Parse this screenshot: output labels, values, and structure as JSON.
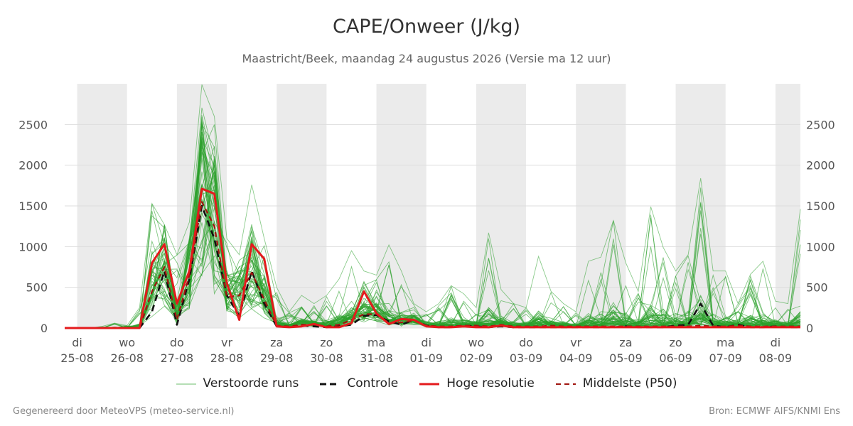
{
  "header": {
    "title": "CAPE/Onweer (J/kg)",
    "subtitle": "Maastricht/Beek, maandag 24 augustus 2026 (Versie ma 12 uur)"
  },
  "footer": {
    "left": "Gegenereerd door MeteoVPS (meteo-service.nl)",
    "right": "Bron: ECMWF AIFS/KNMI Ens"
  },
  "legend": [
    {
      "label": "Verstoorde runs",
      "style": "thin-green",
      "color": "#2ca02c"
    },
    {
      "label": "Controle",
      "style": "dashed",
      "color": "#111111"
    },
    {
      "label": "Hoge resolutie",
      "style": "solid",
      "color": "#e41a1c"
    },
    {
      "label": "Middelste (P50)",
      "style": "dashed",
      "color": "#a0150f"
    }
  ],
  "colors": {
    "members": "#2ca02c",
    "control": "#111111",
    "hires": "#e41a1c",
    "median": "#a0150f",
    "night_band": "#ebebeb",
    "grid": "#dddddd"
  },
  "chart_data": {
    "type": "line",
    "title": "CAPE/Onweer (J/kg)",
    "xlabel": "",
    "ylabel": "",
    "ylim": [
      0,
      3000
    ],
    "yticks": [
      0,
      500,
      1000,
      1500,
      2000,
      2500
    ],
    "x_range_days": [
      -0.25,
      14.5
    ],
    "day_ticks": [
      {
        "day": "di",
        "date": "25-08"
      },
      {
        "day": "wo",
        "date": "26-08"
      },
      {
        "day": "do",
        "date": "27-08"
      },
      {
        "day": "vr",
        "date": "28-08"
      },
      {
        "day": "za",
        "date": "29-08"
      },
      {
        "day": "zo",
        "date": "30-08"
      },
      {
        "day": "ma",
        "date": "31-08"
      },
      {
        "day": "di",
        "date": "01-09"
      },
      {
        "day": "wo",
        "date": "02-09"
      },
      {
        "day": "do",
        "date": "03-09"
      },
      {
        "day": "vr",
        "date": "04-09"
      },
      {
        "day": "za",
        "date": "05-09"
      },
      {
        "day": "zo",
        "date": "06-09"
      },
      {
        "day": "ma",
        "date": "07-09"
      },
      {
        "day": "di",
        "date": "08-09"
      }
    ],
    "step_hours": 6,
    "grid": true,
    "legend_position": "bottom",
    "series": [
      {
        "name": "Hoge resolutie",
        "style": "solid",
        "x": [
          -0.25,
          0,
          0.25,
          0.5,
          0.75,
          1,
          1.25,
          1.5,
          1.75,
          2,
          2.25,
          2.5,
          2.75,
          3,
          3.25,
          3.5,
          3.75,
          4,
          4.25,
          4.5,
          4.75,
          5,
          5.25,
          5.5,
          5.75,
          6,
          6.25,
          6.5,
          6.75,
          7,
          7.25,
          7.5,
          7.75,
          8,
          8.25,
          8.5,
          8.75,
          9,
          9.25,
          9.5,
          9.75,
          10,
          10.25,
          10.5,
          10.75,
          11,
          11.25,
          11.5,
          11.75,
          12,
          12.25,
          12.5,
          12.75,
          13,
          13.25,
          13.5,
          13.75,
          14,
          14.25,
          14.5
        ],
        "values": [
          0,
          0,
          0,
          0,
          0,
          0,
          0,
          800,
          1030,
          300,
          700,
          1710,
          1650,
          550,
          100,
          1030,
          850,
          20,
          10,
          20,
          50,
          10,
          10,
          60,
          450,
          180,
          50,
          110,
          100,
          20,
          10,
          10,
          20,
          10,
          10,
          30,
          10,
          10,
          10,
          10,
          10,
          10,
          10,
          10,
          10,
          10,
          10,
          10,
          10,
          10,
          10,
          10,
          10,
          10,
          10,
          10,
          10,
          10,
          10,
          10
        ]
      },
      {
        "name": "Controle",
        "style": "dashed",
        "x": [
          -0.25,
          0,
          0.25,
          0.5,
          0.75,
          1,
          1.25,
          1.5,
          1.75,
          2,
          2.25,
          2.5,
          2.75,
          3,
          3.25,
          3.5,
          3.75,
          4,
          4.25,
          4.5,
          4.75,
          5,
          5.25,
          5.5,
          5.75,
          6,
          6.25,
          6.5,
          6.75,
          7,
          7.25,
          7.5,
          7.75,
          8,
          8.25,
          8.5,
          8.75,
          9,
          9.25,
          9.5,
          9.75,
          10,
          10.25,
          10.5,
          10.75,
          11,
          11.25,
          11.5,
          11.75,
          12,
          12.25,
          12.5,
          12.75,
          13,
          13.25,
          13.5,
          13.75,
          14,
          14.25,
          14.5
        ],
        "values": [
          0,
          0,
          0,
          0,
          0,
          0,
          0,
          200,
          700,
          40,
          600,
          1500,
          1100,
          400,
          150,
          700,
          300,
          20,
          10,
          30,
          20,
          10,
          20,
          40,
          150,
          160,
          80,
          40,
          100,
          30,
          10,
          10,
          30,
          20,
          10,
          20,
          10,
          10,
          10,
          10,
          10,
          10,
          10,
          10,
          10,
          20,
          10,
          10,
          10,
          30,
          40,
          300,
          30,
          10,
          40,
          10,
          10,
          20,
          10,
          10
        ]
      },
      {
        "name": "Middelste (P50)",
        "style": "dashed",
        "x": [
          -0.25,
          0,
          0.25,
          0.5,
          0.75,
          1,
          1.25,
          1.5,
          1.75,
          2,
          2.25,
          2.5,
          2.75,
          3,
          3.25,
          3.5,
          3.75,
          4,
          4.25,
          4.5,
          4.75,
          5,
          5.25,
          5.5,
          5.75,
          6,
          6.25,
          6.5,
          6.75,
          7,
          7.25,
          7.5,
          7.75,
          8,
          8.25,
          8.5,
          8.75,
          9,
          9.25,
          9.5,
          9.75,
          10,
          10.25,
          10.5,
          10.75,
          11,
          11.25,
          11.5,
          11.75,
          12,
          12.25,
          12.5,
          12.75,
          13,
          13.25,
          13.5,
          13.75,
          14,
          14.25,
          14.5
        ],
        "values": [
          0,
          0,
          0,
          0,
          0,
          0,
          0,
          450,
          750,
          100,
          650,
          1550,
          1250,
          380,
          400,
          680,
          350,
          30,
          20,
          40,
          40,
          20,
          40,
          100,
          170,
          170,
          60,
          70,
          90,
          30,
          20,
          20,
          30,
          30,
          20,
          40,
          20,
          20,
          20,
          30,
          20,
          20,
          20,
          20,
          20,
          20,
          20,
          20,
          20,
          20,
          20,
          30,
          20,
          20,
          30,
          20,
          20,
          20,
          20,
          20
        ]
      }
    ],
    "members": {
      "name": "Verstoorde runs",
      "count": 50,
      "spread_reference": [
        0,
        0,
        0,
        20,
        60,
        30,
        250,
        1530,
        1270,
        900,
        1300,
        2990,
        2600,
        1100,
        900,
        1760,
        1100,
        500,
        200,
        400,
        300,
        400,
        600,
        950,
        700,
        650,
        1020,
        700,
        300,
        200,
        300,
        520,
        420,
        250,
        1170,
        470,
        300,
        250,
        880,
        450,
        300,
        200,
        820,
        870,
        1320,
        800,
        450,
        1490,
        990,
        700,
        900,
        1840,
        700,
        700,
        300,
        660,
        820,
        330,
        300,
        1460
      ]
    }
  }
}
